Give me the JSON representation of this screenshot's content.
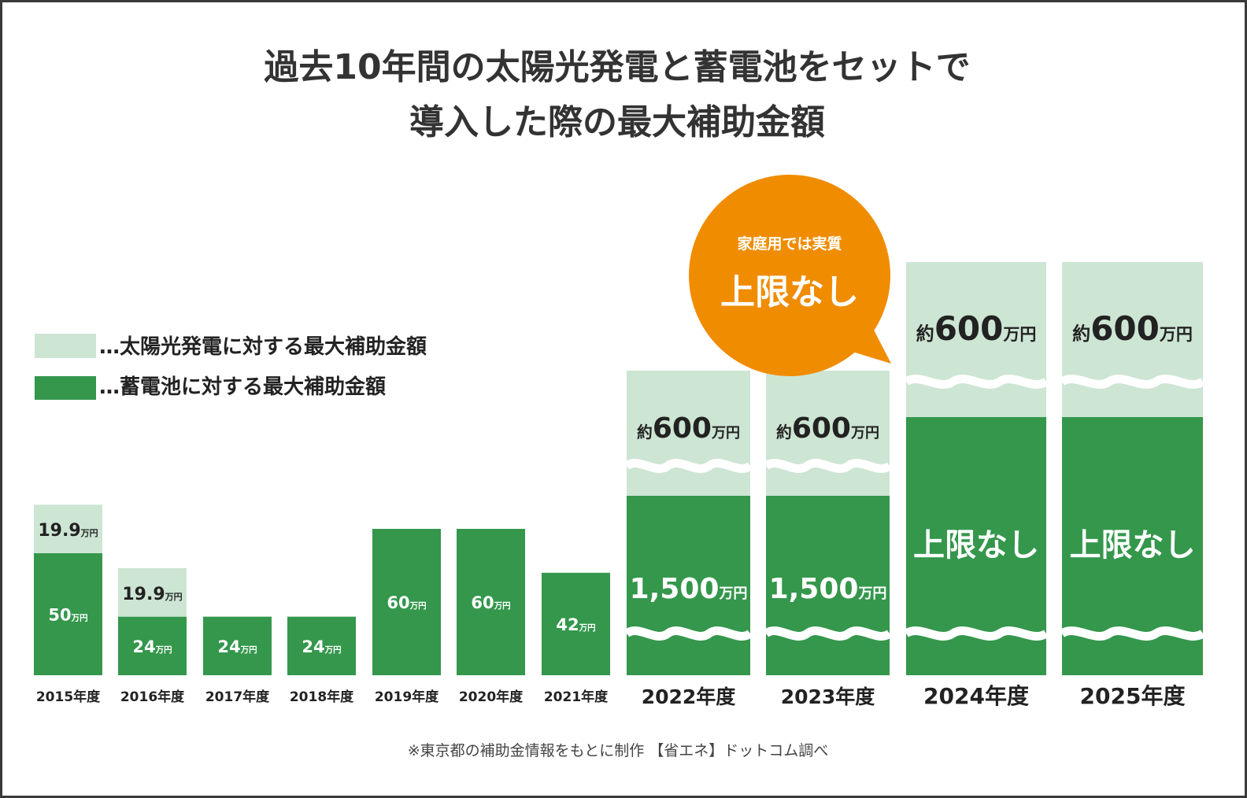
{
  "chart_data": {
    "type": "bar",
    "stacked": true,
    "title_lines": [
      "過去10年間の太陽光発電と蓄電池をセットで",
      "導入した際の最大補助金額"
    ],
    "legend": [
      {
        "label": "…太陽光発電に対する最大補助金額",
        "color": "#cde5d3"
      },
      {
        "label": "…蓄電池に対する最大補助金額",
        "color": "#34974c"
      }
    ],
    "legend_placement": "left",
    "grid": false,
    "unit": "万円",
    "categories": [
      "2015年度",
      "2016年度",
      "2017年度",
      "2018年度",
      "2019年度",
      "2020年度",
      "2021年度",
      "2022年度",
      "2023年度",
      "2024年度",
      "2025年度"
    ],
    "series": [
      {
        "name": "…太陽光発電に対する最大補助金額",
        "values": [
          19.9,
          19.9,
          null,
          null,
          null,
          null,
          null,
          600,
          600,
          600,
          600
        ],
        "labels": [
          "19.9",
          "19.9",
          "",
          "",
          "",
          "",
          "",
          "600",
          "600",
          "600",
          "600"
        ],
        "prefixes": [
          "",
          "",
          "",
          "",
          "",
          "",
          "",
          "約",
          "約",
          "約",
          "約"
        ]
      },
      {
        "name": "…蓄電池に対する最大補助金額",
        "values": [
          50,
          24,
          24,
          24,
          60,
          60,
          42,
          1500,
          1500,
          null,
          null
        ],
        "labels": [
          "50",
          "24",
          "24",
          "24",
          "60",
          "60",
          "42",
          "1,500",
          "1,500",
          "上限なし",
          "上限なし"
        ],
        "prefixes": [
          "",
          "",
          "",
          "",
          "",
          "",
          "",
          "",
          "",
          "",
          ""
        ]
      }
    ],
    "broken_axis_categories": [
      "2022年度",
      "2023年度",
      "2024年度",
      "2025年度"
    ],
    "callout": {
      "line1": "家庭用では実質",
      "line2": "上限なし",
      "color": "#f08c00"
    },
    "footnote": "※東京都の補助金情報をもとに制作 【省エネ】ドットコム調べ"
  }
}
